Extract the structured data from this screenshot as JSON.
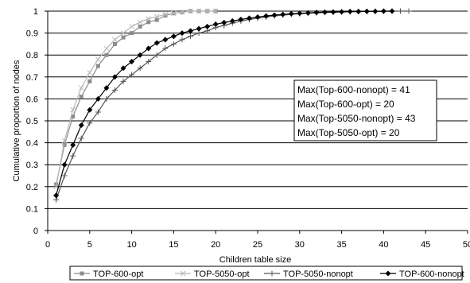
{
  "chart_data": {
    "type": "line",
    "title": "",
    "xlabel": "Children table size",
    "ylabel": "Cumulative proportion of nodes",
    "xlim": [
      0,
      50
    ],
    "ylim": [
      0,
      1
    ],
    "x_ticks": [
      "0",
      "5",
      "10",
      "15",
      "20",
      "25",
      "30",
      "35",
      "40",
      "45",
      "50"
    ],
    "y_ticks": [
      "0",
      "0.1",
      "0.2",
      "0.3",
      "0.4",
      "0.5",
      "0.6",
      "0.7",
      "0.8",
      "0.9",
      "1"
    ],
    "grid": "horizontal",
    "legend_position": "bottom",
    "annotation_lines": [
      "Max(Top-600-nonopt) = 41",
      "Max(Top-600-opt) = 20",
      "Max(Top-5050-nonopt) = 43",
      "Max(Top-5050-opt) = 20"
    ],
    "series": [
      {
        "name": "TOP-600-opt",
        "color": "#8c8c8c",
        "marker": "square",
        "x": [
          1,
          2,
          3,
          4,
          5,
          6,
          7,
          8,
          9,
          10,
          11,
          12,
          13,
          14,
          15,
          16,
          17,
          18,
          19,
          20
        ],
        "y": [
          0.21,
          0.39,
          0.52,
          0.61,
          0.68,
          0.75,
          0.8,
          0.85,
          0.88,
          0.9,
          0.93,
          0.95,
          0.96,
          0.98,
          0.99,
          0.995,
          1.0,
          1.0,
          1.0,
          1.0
        ]
      },
      {
        "name": "TOP-5050-opt",
        "color": "#b8b8b8",
        "marker": "x",
        "x": [
          1,
          2,
          3,
          4,
          5,
          6,
          7,
          8,
          9,
          10,
          11,
          12,
          13,
          14,
          15,
          16,
          17,
          18,
          19,
          20
        ],
        "y": [
          0.2,
          0.41,
          0.55,
          0.65,
          0.72,
          0.78,
          0.83,
          0.87,
          0.9,
          0.93,
          0.95,
          0.965,
          0.975,
          0.985,
          0.99,
          0.995,
          1.0,
          1.0,
          1.0,
          1.0
        ]
      },
      {
        "name": "TOP-5050-nonopt",
        "color": "#555555",
        "marker": "plus",
        "x": [
          1,
          2,
          3,
          4,
          5,
          6,
          7,
          8,
          9,
          10,
          11,
          12,
          13,
          14,
          15,
          16,
          17,
          18,
          19,
          20,
          21,
          22,
          23,
          24,
          25,
          26,
          27,
          28,
          29,
          30,
          31,
          32,
          33,
          34,
          35,
          36,
          37,
          38,
          39,
          40,
          41,
          42,
          43
        ],
        "y": [
          0.14,
          0.25,
          0.34,
          0.42,
          0.49,
          0.54,
          0.6,
          0.64,
          0.68,
          0.71,
          0.74,
          0.77,
          0.8,
          0.83,
          0.85,
          0.87,
          0.885,
          0.9,
          0.91,
          0.925,
          0.935,
          0.945,
          0.955,
          0.962,
          0.968,
          0.973,
          0.978,
          0.982,
          0.985,
          0.988,
          0.99,
          0.992,
          0.994,
          0.995,
          0.996,
          0.997,
          0.998,
          0.998,
          0.999,
          0.999,
          1.0,
          1.0,
          1.0
        ]
      },
      {
        "name": "TOP-600-nonopt",
        "color": "#000000",
        "marker": "diamond",
        "x": [
          1,
          2,
          3,
          4,
          5,
          6,
          7,
          8,
          9,
          10,
          11,
          12,
          13,
          14,
          15,
          16,
          17,
          18,
          19,
          20,
          21,
          22,
          23,
          24,
          25,
          26,
          27,
          28,
          29,
          30,
          31,
          32,
          33,
          34,
          35,
          36,
          37,
          38,
          39,
          40,
          41
        ],
        "y": [
          0.16,
          0.3,
          0.39,
          0.48,
          0.55,
          0.6,
          0.65,
          0.7,
          0.74,
          0.77,
          0.8,
          0.83,
          0.855,
          0.87,
          0.885,
          0.9,
          0.91,
          0.92,
          0.93,
          0.94,
          0.948,
          0.955,
          0.962,
          0.968,
          0.973,
          0.978,
          0.982,
          0.985,
          0.988,
          0.99,
          0.992,
          0.994,
          0.995,
          0.996,
          0.997,
          0.998,
          0.998,
          0.999,
          0.999,
          1.0,
          1.0
        ]
      }
    ]
  }
}
